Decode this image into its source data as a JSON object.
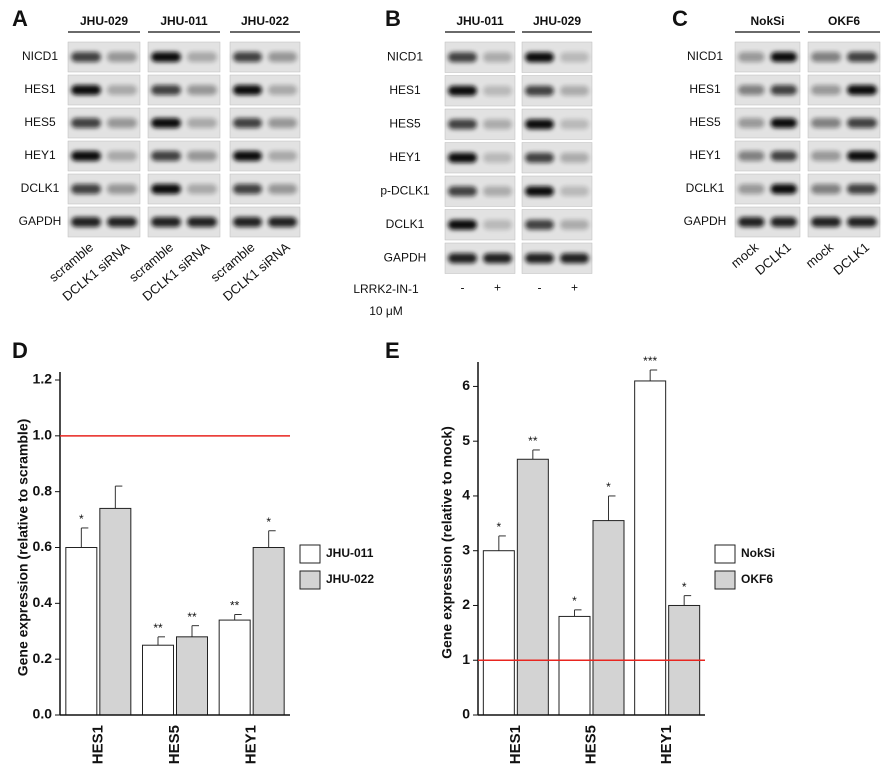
{
  "panels": [
    {
      "letter": "A",
      "groups": [
        "JHU-029",
        "JHU-011",
        "JHU-022"
      ],
      "rows": [
        "NICD1",
        "HES1",
        "HES5",
        "HEY1",
        "DCLK1",
        "GAPDH"
      ],
      "lanes": [
        "scramble",
        "DCLK1 siRNA"
      ]
    },
    {
      "letter": "B",
      "groups": [
        "JHU-011",
        "JHU-029"
      ],
      "rows": [
        "NICD1",
        "HES1",
        "HES5",
        "HEY1",
        "p-DCLK1",
        "DCLK1",
        "GAPDH"
      ],
      "lanes": [
        "-",
        "+"
      ],
      "treatment": [
        "LRRK2-IN-1",
        "10 μM"
      ]
    },
    {
      "letter": "C",
      "groups": [
        "NokSi",
        "OKF6"
      ],
      "rows": [
        "NICD1",
        "HES1",
        "HES5",
        "HEY1",
        "DCLK1",
        "GAPDH"
      ],
      "lanes": [
        "mock",
        "DCLK1"
      ]
    }
  ],
  "chart_data": [
    {
      "type": "bar",
      "letter": "D",
      "y_label": "Gene expression (relative to scramble)",
      "categories": [
        "HES1",
        "HES5",
        "HEY1"
      ],
      "series": [
        {
          "name": "JHU-011",
          "color": "#ffffff",
          "values": [
            0.6,
            0.25,
            0.34
          ],
          "errors": [
            0.07,
            0.03,
            0.02
          ],
          "significance": [
            "*",
            "**",
            "**"
          ]
        },
        {
          "name": "JHU-022",
          "color": "#d3d3d3",
          "values": [
            0.74,
            0.28,
            0.6
          ],
          "errors": [
            0.08,
            0.04,
            0.06
          ],
          "significance": [
            null,
            "**",
            "*"
          ]
        }
      ],
      "ylim": [
        0,
        1.2
      ],
      "yticks": [
        {
          "value": 0,
          "label": "0.0"
        },
        0.2,
        0.4,
        0.6,
        0.8,
        {
          "value": 1,
          "label": "1.0"
        },
        1.2
      ],
      "reference_line": {
        "value": 1,
        "color": "#e8251f"
      }
    },
    {
      "type": "bar",
      "letter": "E",
      "y_label": "Gene expression (relative to mock)",
      "categories": [
        "HES1",
        "HES5",
        "HEY1"
      ],
      "series": [
        {
          "name": "NokSi",
          "color": "#ffffff",
          "values": [
            3.0,
            1.8,
            6.1
          ],
          "errors": [
            0.27,
            0.12,
            0.2
          ],
          "significance": [
            "*",
            "*",
            "***"
          ]
        },
        {
          "name": "OKF6",
          "color": "#d3d3d3",
          "values": [
            4.67,
            3.55,
            2.0
          ],
          "errors": [
            0.17,
            0.45,
            0.18
          ],
          "significance": [
            "**",
            "*",
            "*"
          ]
        }
      ],
      "ylim": [
        0,
        6.3
      ],
      "yticks": [
        0,
        1,
        2,
        3,
        4,
        5,
        6
      ],
      "reference_line": {
        "value": 1,
        "color": "#e8251f"
      }
    }
  ]
}
